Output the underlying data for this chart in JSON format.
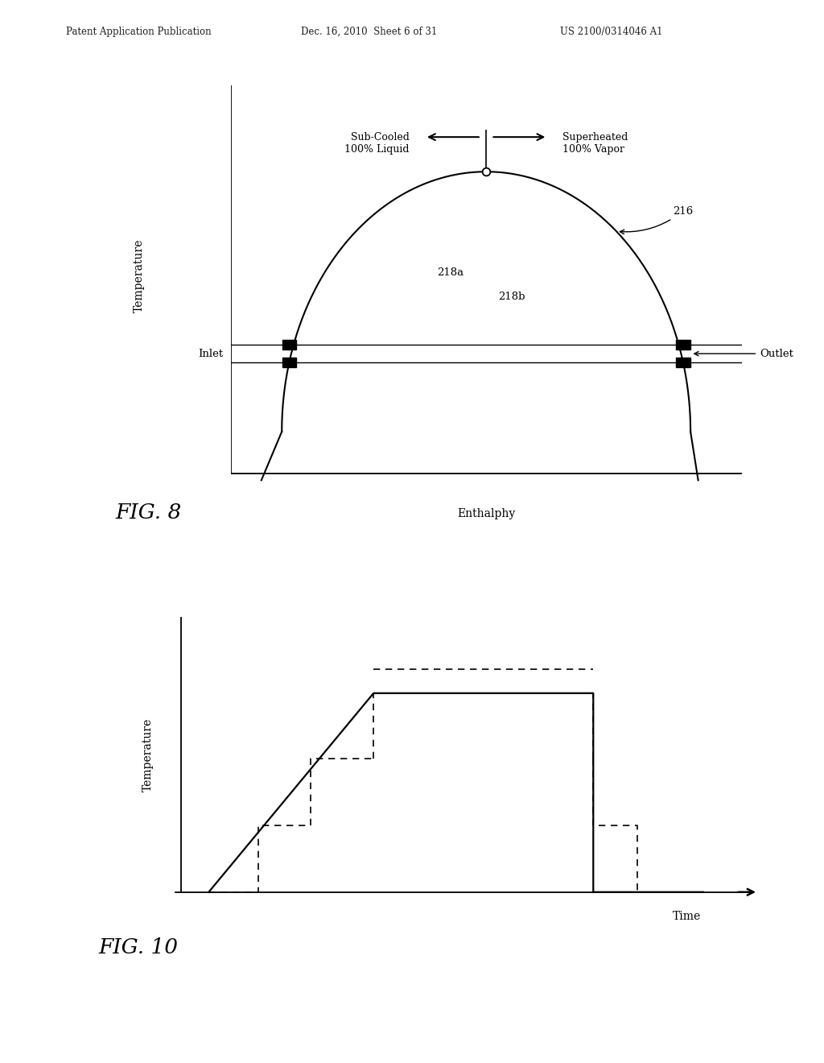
{
  "bg_color": "#ffffff",
  "header_left": "Patent Application Publication",
  "header_mid": "Dec. 16, 2010  Sheet 6 of 31",
  "header_right": "US 2100/0314046 A1",
  "fig8_title": "FIG. 8",
  "fig8_xlabel": "Enthalphy",
  "fig8_ylabel": "Temperature",
  "fig8_label_subcooled": "Sub-Cooled\n100% Liquid",
  "fig8_label_superheated": "Superheated\n100% Vapor",
  "fig8_label_inlet": "Inlet",
  "fig8_label_outlet": "Outlet",
  "fig8_label_218a": "218a",
  "fig8_label_218b": "218b",
  "fig8_label_216": "216",
  "fig10_title": "FIG. 10",
  "fig10_xlabel": "Time",
  "fig10_ylabel": "Temperature",
  "line_color": "#000000"
}
